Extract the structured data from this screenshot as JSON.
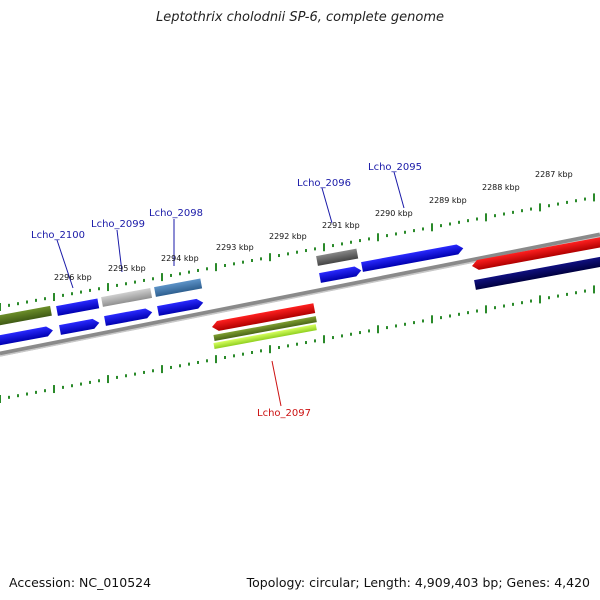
{
  "title": "Leptothrix cholodnii SP-6, complete genome",
  "accession": "Accession: NC_010524",
  "topology": "Topology: circular; Length: 4,909,403 bp; Genes: 4,420",
  "colors": {
    "backbone": "#8a8a8a",
    "tick": "#2a8a2a",
    "label_blue": "#1a1aa8",
    "label_red": "#cc1111"
  },
  "kbp_labels": [
    "2287 kbp",
    "2288 kbp",
    "2289 kbp",
    "2290 kbp",
    "2291 kbp",
    "2292 kbp",
    "2293 kbp",
    "2294 kbp",
    "2295 kbp",
    "2296 kbp"
  ],
  "gene_labels": [
    {
      "name": "Lcho_2095",
      "color": "#1a1aa8"
    },
    {
      "name": "Lcho_2096",
      "color": "#1a1aa8"
    },
    {
      "name": "Lcho_2097",
      "color": "#cc1111"
    },
    {
      "name": "Lcho_2098",
      "color": "#1a1aa8"
    },
    {
      "name": "Lcho_2099",
      "color": "#1a1aa8"
    },
    {
      "name": "Lcho_2100",
      "color": "#1a1aa8"
    }
  ]
}
